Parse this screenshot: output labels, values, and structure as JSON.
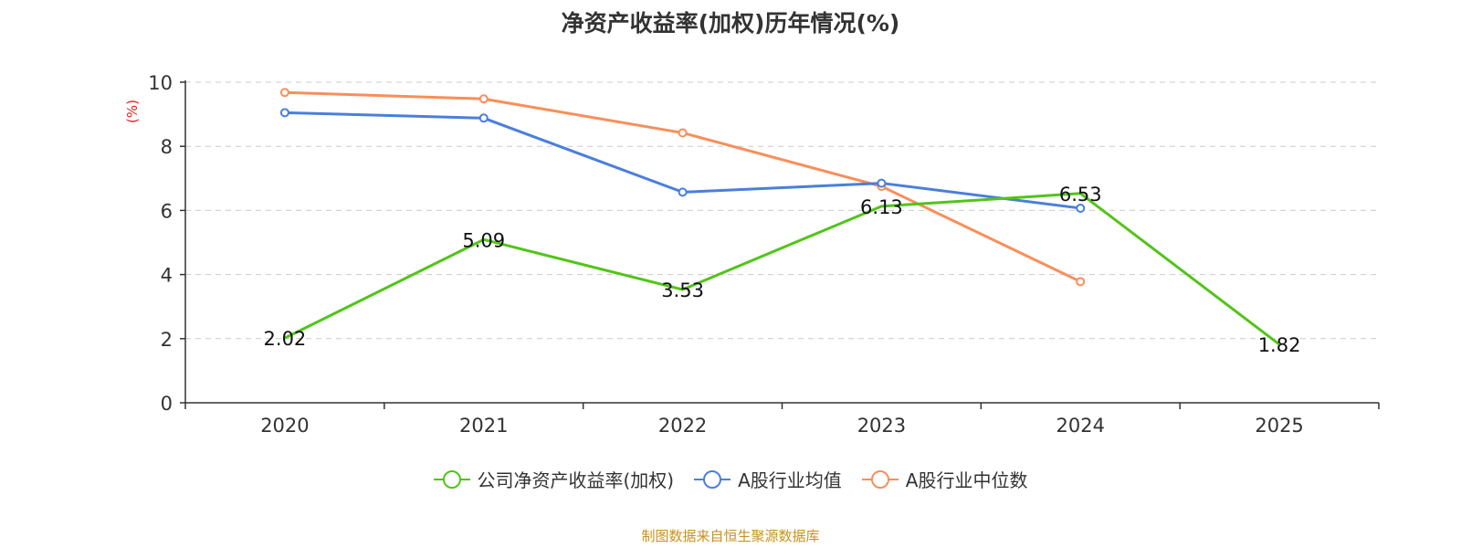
{
  "chart_data": {
    "type": "line",
    "title": "净资产收益率(加权)历年情况(%)",
    "ylabel": "(%)",
    "xlabel": "",
    "categories": [
      "2020",
      "2021",
      "2022",
      "2023",
      "2024",
      "2025"
    ],
    "ylim": [
      0,
      10
    ],
    "yticks": [
      0,
      2,
      4,
      6,
      8,
      10
    ],
    "grid": true,
    "legend_position": "bottom",
    "series": [
      {
        "name": "公司净资产收益率(加权)",
        "color": "#52c41a",
        "values": [
          2.02,
          5.09,
          3.53,
          6.13,
          6.53,
          1.82
        ],
        "data_labels": [
          "2.02",
          "5.09",
          "3.53",
          "6.13",
          "6.53",
          "1.82"
        ],
        "show_markers": false
      },
      {
        "name": "A股行业均值",
        "color": "#4a7fdc",
        "values": [
          9.05,
          8.88,
          6.57,
          6.85,
          6.07,
          null
        ],
        "show_markers": true
      },
      {
        "name": "A股行业中位数",
        "color": "#f98e5a",
        "values": [
          9.68,
          9.48,
          8.42,
          6.75,
          3.78,
          null
        ],
        "show_markers": true
      }
    ]
  },
  "source": "制图数据来自恒生聚源数据库"
}
